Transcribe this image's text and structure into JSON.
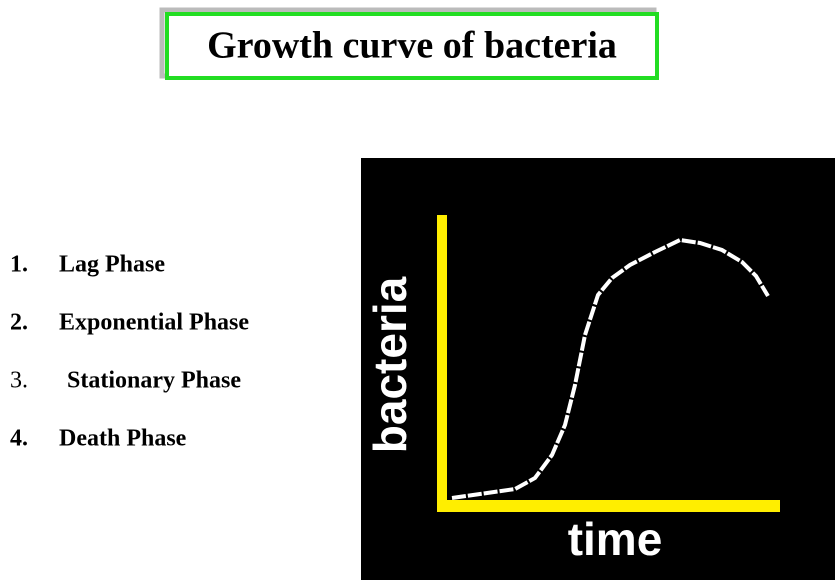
{
  "title": "Growth curve of bacteria",
  "list": {
    "items": [
      {
        "number": "1.",
        "label": "Lag Phase"
      },
      {
        "number": "2.",
        "label": "Exponential Phase"
      },
      {
        "number": "3.",
        "label": "Stationary Phase"
      },
      {
        "number": "4.",
        "label": "Death Phase"
      }
    ]
  },
  "figure": {
    "y_label": "bacteria",
    "x_label": "time"
  }
}
